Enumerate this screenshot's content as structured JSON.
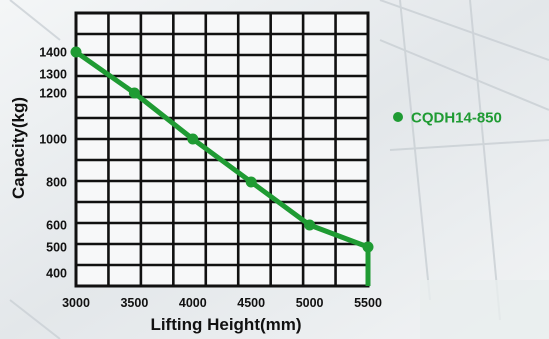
{
  "chart_data": {
    "type": "line",
    "title": "",
    "xlabel": "Lifting Height(mm)",
    "ylabel": "Capacity(kg)",
    "xlim": [
      3000,
      5500
    ],
    "ylim": [
      400,
      1400
    ],
    "x_ticks": [
      3000,
      3500,
      4000,
      4500,
      5000,
      5500
    ],
    "y_ticks": [
      400,
      500,
      600,
      800,
      1000,
      1200,
      1300,
      1400
    ],
    "grid": true,
    "legend_position": "right",
    "series": [
      {
        "name": "CQDH14-850",
        "color": "#1f9b33",
        "x": [
          3000,
          3500,
          4000,
          4500,
          5000,
          5500
        ],
        "y": [
          1400,
          1200,
          1000,
          800,
          600,
          500
        ]
      }
    ]
  }
}
